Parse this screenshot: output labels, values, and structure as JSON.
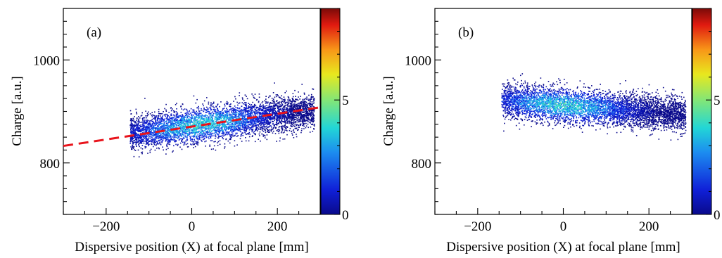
{
  "chart_data": [
    {
      "type": "heatmap",
      "panel_label": "(a)",
      "xlabel": "Dispersive position (X) at focal plane [mm]",
      "ylabel": "Charge [a.u.]",
      "xlim": [
        -300,
        300
      ],
      "ylim": [
        700,
        1100
      ],
      "xticks": [
        -200,
        0,
        200
      ],
      "xtick_labels": [
        "−200",
        "0",
        "200"
      ],
      "yticks": [
        800,
        1000
      ],
      "ytick_labels": [
        "800",
        "1000"
      ],
      "colorbar": {
        "range": [
          0,
          9
        ],
        "tick_values": [
          0,
          5
        ],
        "tick_labels": [
          "0",
          "5"
        ]
      },
      "distribution": {
        "x_range": [
          -145,
          285
        ],
        "center_y_at_x": [
          [
            -145,
            858
          ],
          [
            285,
            903
          ]
        ],
        "y_halfwidth": 30,
        "peak_x": 20
      },
      "fit_line": {
        "style": "dashed",
        "color": "#e8141c",
        "points": [
          [
            -300,
            833
          ],
          [
            300,
            908
          ]
        ]
      }
    },
    {
      "type": "heatmap",
      "panel_label": "(b)",
      "xlabel": "Dispersive position (X) at focal plane [mm]",
      "ylabel": "Charge [a.u.]",
      "xlim": [
        -300,
        300
      ],
      "ylim": [
        700,
        1100
      ],
      "xticks": [
        -200,
        0,
        200
      ],
      "xtick_labels": [
        "−200",
        "0",
        "200"
      ],
      "yticks": [
        800,
        1000
      ],
      "ytick_labels": [
        "800",
        "1000"
      ],
      "colorbar": {
        "range": [
          0,
          9
        ],
        "tick_values": [
          0,
          5
        ],
        "tick_labels": [
          "0",
          "5"
        ]
      },
      "distribution": {
        "x_range": [
          -145,
          285
        ],
        "center_y_at_x": [
          [
            -145,
            922
          ],
          [
            285,
            895
          ]
        ],
        "y_halfwidth": 30,
        "peak_x": 0
      }
    }
  ]
}
